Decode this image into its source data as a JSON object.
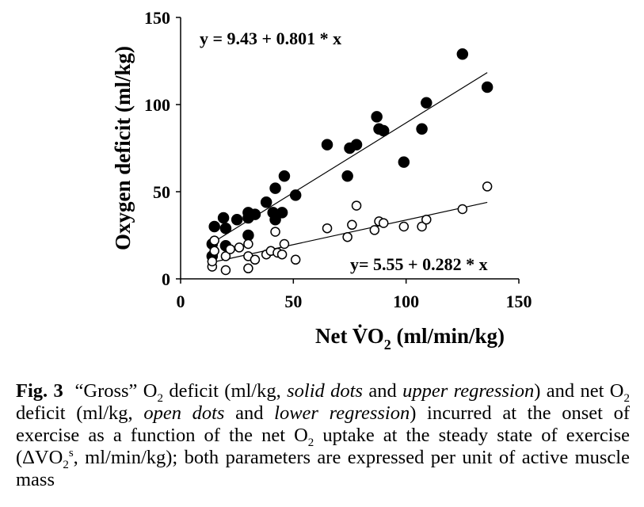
{
  "chart_data": {
    "type": "scatter",
    "x_ticks": [
      "0",
      "50",
      "100",
      "150"
    ],
    "y_ticks": [
      "0",
      "50",
      "100",
      "150"
    ],
    "xlim": [
      0,
      150
    ],
    "ylim": [
      0,
      150
    ],
    "xlabel_prefix": "Net ",
    "xlabel_symbol": "V̇O",
    "xlabel_sub": "2",
    "xlabel_suffix": " (ml/min/kg)",
    "ylabel": "Oxygen deficit (ml/kg)",
    "grid": false,
    "series": [
      {
        "marker": "filled",
        "regression_label": "y = 9.43 + 0.801 * x",
        "intercept": 9.43,
        "slope": 0.801,
        "points": [
          [
            14,
            13
          ],
          [
            14,
            20
          ],
          [
            15,
            30
          ],
          [
            19,
            35
          ],
          [
            20,
            29
          ],
          [
            20,
            19
          ],
          [
            25,
            34
          ],
          [
            30,
            38
          ],
          [
            30,
            25
          ],
          [
            30,
            35
          ],
          [
            33,
            37
          ],
          [
            38,
            44
          ],
          [
            41,
            38
          ],
          [
            42,
            34
          ],
          [
            42,
            52
          ],
          [
            45,
            38
          ],
          [
            46,
            59
          ],
          [
            51,
            48
          ],
          [
            65,
            77
          ],
          [
            74,
            59
          ],
          [
            75,
            75
          ],
          [
            78,
            77
          ],
          [
            87,
            93
          ],
          [
            88,
            86
          ],
          [
            90,
            85
          ],
          [
            99,
            67
          ],
          [
            107,
            86
          ],
          [
            109,
            101
          ],
          [
            125,
            129
          ],
          [
            136,
            110
          ]
        ]
      },
      {
        "marker": "open",
        "regression_label": "y= 5.55 + 0.282 * x",
        "intercept": 5.55,
        "slope": 0.282,
        "points": [
          [
            14,
            7
          ],
          [
            14,
            10
          ],
          [
            15,
            16
          ],
          [
            15,
            22
          ],
          [
            20,
            5
          ],
          [
            20,
            13
          ],
          [
            22,
            17
          ],
          [
            26,
            18
          ],
          [
            30,
            6
          ],
          [
            30,
            13
          ],
          [
            30,
            20
          ],
          [
            33,
            11
          ],
          [
            38,
            14
          ],
          [
            40,
            16
          ],
          [
            42,
            27
          ],
          [
            43,
            15
          ],
          [
            45,
            14
          ],
          [
            46,
            20
          ],
          [
            51,
            11
          ],
          [
            65,
            29
          ],
          [
            74,
            24
          ],
          [
            76,
            31
          ],
          [
            78,
            42
          ],
          [
            86,
            28
          ],
          [
            88,
            33
          ],
          [
            90,
            32
          ],
          [
            99,
            30
          ],
          [
            107,
            30
          ],
          [
            109,
            34
          ],
          [
            125,
            40
          ],
          [
            136,
            53
          ]
        ]
      }
    ]
  },
  "caption": {
    "fig_label": "Fig. 3",
    "parts": [
      "“Gross” O",
      "2",
      " deficit (ml/kg, ",
      "solid dots",
      " and ",
      "upper regression",
      ") and net O",
      "2",
      " deficit (ml/kg, ",
      "open dots",
      " and ",
      "lower regression",
      ") incurred at the onset of exercise as a function of the net O",
      "2",
      " uptake at the steady state of exercise (ΔVO",
      "2",
      "s",
      ", ml/min/kg); both parameters are expressed per unit of active muscle mass"
    ]
  }
}
